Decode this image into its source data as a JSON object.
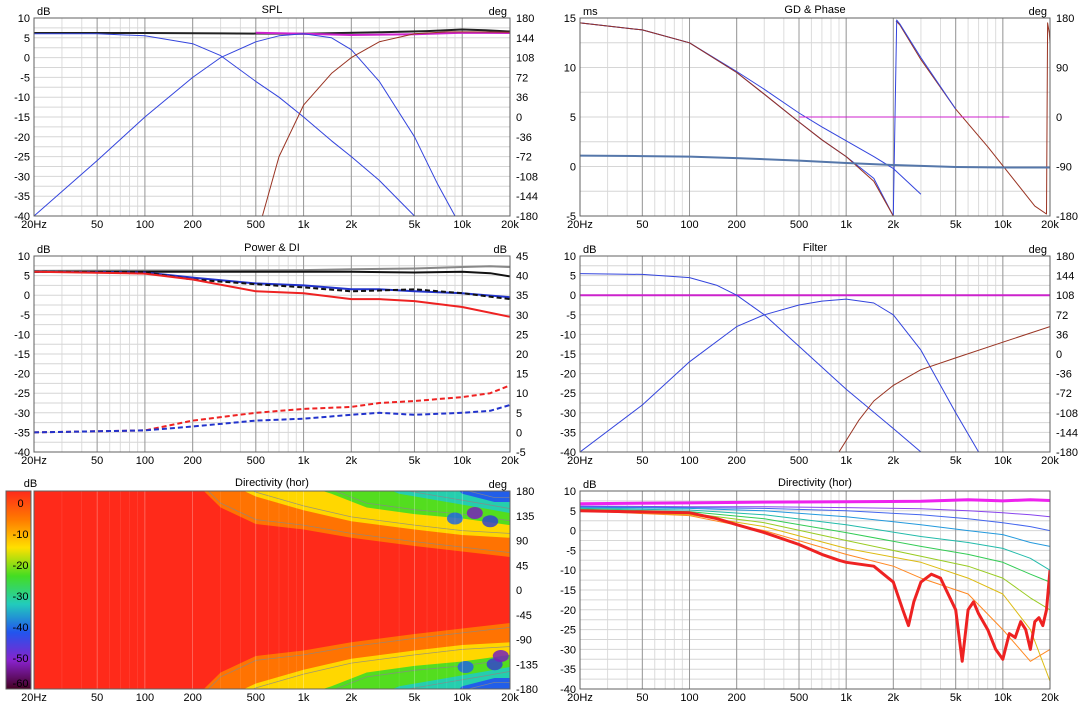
{
  "window": {
    "background": "#ffffff"
  },
  "x_axis": {
    "ticks": [
      20,
      50,
      100,
      200,
      500,
      1000,
      2000,
      5000,
      10000,
      20000
    ],
    "tick_labels": [
      "20Hz",
      "50",
      "100",
      "200",
      "500",
      "1k",
      "2k",
      "5k",
      "10k",
      "20k"
    ],
    "range": [
      20,
      20000
    ],
    "scale": "log"
  },
  "chart_data": [
    {
      "id": "spl",
      "type": "line",
      "title": "SPL",
      "left_unit": "dB",
      "right_unit": "deg",
      "ylim": [
        -40,
        10
      ],
      "y_ticks": [
        10,
        5,
        0,
        -5,
        -10,
        -15,
        -20,
        -25,
        -30,
        -35,
        -40
      ],
      "y2lim": [
        -180,
        180
      ],
      "y2_ticks": [
        180,
        144,
        108,
        72,
        36,
        0,
        -36,
        -72,
        -108,
        -144,
        -180
      ],
      "series": [
        {
          "color": "#222222",
          "width": 2,
          "x": [
            20,
            100,
            300,
            1000,
            3000,
            6000,
            10000,
            14000,
            20000
          ],
          "y": [
            6.2,
            6.2,
            6.1,
            6.0,
            6.4,
            6.7,
            7.1,
            6.9,
            6.6
          ]
        },
        {
          "color": "#cc22cc",
          "width": 2,
          "x": [
            500,
            1000,
            2000,
            5000,
            10000,
            20000
          ],
          "y": [
            6.3,
            6.0,
            5.7,
            5.9,
            6.3,
            6.2
          ]
        },
        {
          "color": "#3344dd",
          "width": 1,
          "x": [
            20,
            50,
            100,
            200,
            300,
            500,
            700,
            1000,
            1500,
            2000,
            3000,
            5000
          ],
          "y": [
            6.0,
            6.0,
            5.5,
            3.5,
            0.5,
            -6,
            -10,
            -15,
            -21,
            -25,
            -31,
            -40
          ]
        },
        {
          "color": "#3344dd",
          "width": 1,
          "x": [
            20,
            50,
            100,
            200,
            300,
            500,
            700,
            1000,
            1500,
            2000,
            3000,
            5000,
            7000,
            9000
          ],
          "y": [
            -40,
            -26,
            -15,
            -5,
            0,
            4,
            5.5,
            6,
            5,
            2,
            -6,
            -20,
            -32,
            -40
          ]
        },
        {
          "color": "#993322",
          "width": 1,
          "x": [
            550,
            700,
            1000,
            1500,
            2000,
            3000,
            5000,
            8000,
            12000,
            20000
          ],
          "y": [
            -40,
            -25,
            -12,
            -4,
            0,
            4,
            6,
            6.5,
            6.5,
            6.4
          ]
        }
      ]
    },
    {
      "id": "gd-phase",
      "type": "line",
      "title": "GD & Phase",
      "left_unit": "ms",
      "right_unit": "deg",
      "ylim": [
        -5,
        15
      ],
      "y_ticks": [
        15,
        10,
        5,
        0,
        -5
      ],
      "y2lim": [
        -180,
        180
      ],
      "y2_ticks": [
        180,
        90,
        0,
        -90,
        -180
      ],
      "series": [
        {
          "color": "#3344dd",
          "width": 1,
          "x": [
            20,
            50,
            100,
            200,
            300,
            500,
            700,
            1000,
            1500,
            2000
          ],
          "y": [
            14.5,
            13.8,
            12.5,
            9.5,
            7.3,
            4.5,
            2.7,
            1.0,
            -1.2,
            -5.0
          ]
        },
        {
          "color": "#3344dd",
          "width": 1,
          "x": [
            20,
            50,
            100,
            200,
            300,
            500,
            700,
            1000,
            1500,
            2000,
            3000
          ],
          "y": [
            14.5,
            13.8,
            12.5,
            9.6,
            7.8,
            5.4,
            4.0,
            2.6,
            1.0,
            -0.2,
            -2.8
          ]
        },
        {
          "color": "#993322",
          "width": 1,
          "x": [
            20,
            50,
            100,
            200,
            300,
            500,
            700,
            1000,
            1500,
            2000
          ],
          "y": [
            14.5,
            13.8,
            12.5,
            9.5,
            7.3,
            4.5,
            2.7,
            1.0,
            -1.5,
            -5.0
          ]
        },
        {
          "color": "#993322",
          "width": 1,
          "x": [
            2080,
            2200,
            3000,
            5000,
            8000,
            12000,
            16000,
            19000,
            19300,
            19800,
            20000
          ],
          "y": [
            14.7,
            14.3,
            10.8,
            5.8,
            2.0,
            -1.5,
            -4.0,
            -4.8,
            14.5,
            13.5,
            12.5
          ]
        },
        {
          "color": "#3344dd",
          "width": 1,
          "x": [
            2000,
            2100,
            2200,
            3000,
            5000
          ],
          "y": [
            -4.9,
            14.8,
            14.4,
            11.0,
            5.8
          ]
        },
        {
          "color": "#cc22cc",
          "width": 1,
          "x": [
            500,
            1000,
            2000,
            5000,
            11000
          ],
          "y": [
            5,
            5,
            5,
            5,
            5
          ]
        },
        {
          "color": "#5577aa",
          "width": 2,
          "x": [
            20,
            50,
            100,
            200,
            500,
            1000,
            2000,
            5000,
            10000,
            20000
          ],
          "y": [
            1.1,
            1.05,
            1.0,
            0.85,
            0.6,
            0.35,
            0.15,
            -0.05,
            -0.1,
            -0.1
          ]
        }
      ]
    },
    {
      "id": "power-di",
      "type": "line",
      "title": "Power & DI",
      "left_unit": "dB",
      "right_unit": "dB",
      "ylim": [
        -40,
        10
      ],
      "y_ticks": [
        10,
        5,
        0,
        -5,
        -10,
        -15,
        -20,
        -25,
        -30,
        -35,
        -40
      ],
      "y2lim": [
        -5,
        45
      ],
      "y2_ticks": [
        45,
        40,
        35,
        30,
        25,
        20,
        15,
        10,
        5,
        0,
        -5
      ],
      "series": [
        {
          "color": "#888888",
          "width": 2,
          "x": [
            20,
            100,
            300,
            1000,
            2000,
            5000,
            10000,
            15000,
            20000
          ],
          "y": [
            6.2,
            6.3,
            6.3,
            6.4,
            6.6,
            6.8,
            7.2,
            7.4,
            7.2
          ]
        },
        {
          "color": "#111111",
          "width": 2,
          "x": [
            20,
            100,
            300,
            1000,
            2000,
            5000,
            10000,
            15000,
            20000
          ],
          "y": [
            6,
            6,
            6,
            6,
            6,
            5.8,
            6.0,
            5.6,
            4.8
          ]
        },
        {
          "color": "#2233cc",
          "width": 2,
          "x": [
            20,
            100,
            200,
            500,
            1000,
            2000,
            3000,
            5000,
            10000,
            20000
          ],
          "y": [
            6,
            5.8,
            4.5,
            3.0,
            2.5,
            1.5,
            1.5,
            1.0,
            0.5,
            -0.5
          ]
        },
        {
          "color": "#111111",
          "width": 2,
          "dash": "5,3",
          "x": [
            20,
            100,
            200,
            500,
            1000,
            2000,
            3000,
            5000,
            10000,
            20000
          ],
          "y": [
            6,
            5.8,
            4.0,
            2.8,
            2.0,
            1.0,
            1.2,
            1.5,
            0.5,
            -1.0
          ]
        },
        {
          "color": "#ee2222",
          "width": 2,
          "x": [
            20,
            100,
            200,
            500,
            1000,
            2000,
            3000,
            5000,
            10000,
            20000
          ],
          "y": [
            6,
            5.5,
            4.0,
            1.0,
            0.5,
            -1.0,
            -1.0,
            -1.5,
            -3.0,
            -5.5
          ]
        },
        {
          "color": "#ee2222",
          "width": 2,
          "dash": "5,3",
          "x": [
            20,
            100,
            200,
            500,
            1000,
            2000,
            3000,
            5000,
            10000,
            15000,
            20000
          ],
          "y": [
            -35,
            -34.5,
            -32.0,
            -30.0,
            -29.0,
            -28.5,
            -27.5,
            -27.0,
            -26.0,
            -25.0,
            -23.0
          ]
        },
        {
          "color": "#2233cc",
          "width": 2,
          "dash": "5,3",
          "x": [
            20,
            100,
            200,
            500,
            1000,
            2000,
            3000,
            5000,
            10000,
            15000,
            20000
          ],
          "y": [
            -35,
            -34.5,
            -33.5,
            -32.0,
            -31.5,
            -30.5,
            -30.0,
            -30.5,
            -30.0,
            -29.5,
            -28.0
          ]
        }
      ]
    },
    {
      "id": "filter",
      "type": "line",
      "title": "Filter",
      "left_unit": "dB",
      "right_unit": "deg",
      "ylim": [
        -40,
        10
      ],
      "y_ticks": [
        10,
        5,
        0,
        -5,
        -10,
        -15,
        -20,
        -25,
        -30,
        -35,
        -40
      ],
      "y2lim": [
        -180,
        180
      ],
      "y2_ticks": [
        180,
        144,
        108,
        72,
        36,
        0,
        -36,
        -72,
        -108,
        -144,
        -180
      ],
      "series": [
        {
          "color": "#cc22cc",
          "width": 2,
          "x": [
            20,
            20000
          ],
          "y": [
            0,
            0
          ]
        },
        {
          "color": "#3344dd",
          "width": 1,
          "x": [
            20,
            50,
            100,
            150,
            200,
            300,
            500,
            1000,
            2000,
            3000
          ],
          "y": [
            5.5,
            5.3,
            4.5,
            2.5,
            0,
            -5,
            -13,
            -24,
            -34,
            -40
          ]
        },
        {
          "color": "#3344dd",
          "width": 1,
          "x": [
            20,
            50,
            100,
            200,
            300,
            500,
            700,
            1000,
            1500,
            2000,
            3000,
            5000,
            7000
          ],
          "y": [
            -40,
            -28,
            -17,
            -8,
            -5,
            -2.5,
            -1.5,
            -1,
            -2,
            -5,
            -14,
            -30,
            -40
          ]
        },
        {
          "color": "#993322",
          "width": 1,
          "x": [
            900,
            1200,
            1500,
            2000,
            3000,
            5000,
            10000,
            20000
          ],
          "y": [
            -40,
            -32,
            -27,
            -23,
            -19,
            -16,
            -12,
            -8
          ]
        }
      ]
    },
    {
      "id": "directivity-map",
      "type": "heatmap",
      "title": "Directivity (hor)",
      "left_unit": "",
      "right_unit": "deg",
      "y2_ticks": [
        180,
        135,
        90,
        45,
        0,
        -45,
        -90,
        -135,
        -180
      ],
      "colorbar_label": "dB",
      "colorbar_ticks": [
        0,
        -10,
        -20,
        -30,
        -40,
        -50,
        -60
      ],
      "color_stops": [
        "#ff2a1a",
        "#ff7a00",
        "#ffe000",
        "#44dd22",
        "#22ccbb",
        "#2255ee",
        "#8822cc",
        "#440022"
      ]
    },
    {
      "id": "directivity-lines",
      "type": "line",
      "title": "Directivity (hor)",
      "left_unit": "dB",
      "right_unit": "",
      "ylim": [
        -40,
        10
      ],
      "y_ticks": [
        10,
        5,
        0,
        -5,
        -10,
        -15,
        -20,
        -25,
        -30,
        -35,
        -40
      ],
      "series": [
        {
          "color": "#ee22ee",
          "width": 3,
          "x": [
            20,
            100,
            300,
            1000,
            3000,
            6000,
            10000,
            15000,
            20000
          ],
          "y": [
            6.8,
            7.0,
            7.2,
            7.3,
            7.4,
            7.8,
            7.5,
            7.8,
            7.6
          ]
        },
        {
          "color": "#8844ee",
          "width": 1,
          "x": [
            20,
            100,
            300,
            1000,
            3000,
            6000,
            10000,
            15000,
            20000
          ],
          "y": [
            6.2,
            6.0,
            6.0,
            5.8,
            5.5,
            5.0,
            4.5,
            4.0,
            3.5
          ]
        },
        {
          "color": "#4466ee",
          "width": 1,
          "x": [
            20,
            100,
            300,
            1000,
            3000,
            6000,
            10000,
            15000,
            20000
          ],
          "y": [
            6.0,
            5.8,
            5.6,
            5.0,
            4.0,
            3.0,
            2.0,
            1.0,
            0.0
          ]
        },
        {
          "color": "#2299dd",
          "width": 1,
          "x": [
            20,
            100,
            300,
            1000,
            3000,
            6000,
            10000,
            15000,
            20000
          ],
          "y": [
            5.8,
            5.6,
            5.0,
            3.5,
            1.5,
            0.0,
            -1.0,
            -3.0,
            -4.0
          ]
        },
        {
          "color": "#22bbaa",
          "width": 1,
          "x": [
            20,
            100,
            300,
            1000,
            3000,
            6000,
            10000,
            15000,
            20000
          ],
          "y": [
            5.6,
            5.2,
            4.0,
            1.5,
            -1.5,
            -3.0,
            -4.5,
            -7.0,
            -10.0
          ]
        },
        {
          "color": "#33cc55",
          "width": 1,
          "x": [
            20,
            100,
            300,
            1000,
            3000,
            6000,
            10000,
            15000,
            20000
          ],
          "y": [
            5.4,
            4.8,
            3.0,
            -0.5,
            -4.0,
            -6.0,
            -8.0,
            -11.0,
            -13.0
          ]
        },
        {
          "color": "#99cc22",
          "width": 1,
          "x": [
            20,
            100,
            300,
            1000,
            3000,
            6000,
            10000,
            15000,
            20000
          ],
          "y": [
            5.2,
            4.4,
            2.0,
            -2.5,
            -6.5,
            -9.0,
            -12.0,
            -17.0,
            -20.0
          ]
        },
        {
          "color": "#ddbb11",
          "width": 1,
          "x": [
            20,
            100,
            300,
            1000,
            3000,
            6000,
            10000,
            15000,
            20000
          ],
          "y": [
            5.0,
            4.0,
            1.0,
            -4.5,
            -8.0,
            -12.0,
            -16.0,
            -25.0,
            -38.0
          ]
        },
        {
          "color": "#ff8822",
          "width": 1,
          "x": [
            20,
            100,
            300,
            1000,
            2000,
            3000,
            6000,
            10000,
            15000,
            20000
          ],
          "y": [
            5.0,
            3.8,
            0.0,
            -6.0,
            -9.0,
            -12.0,
            -16.0,
            -25.0,
            -33.0,
            -30.0
          ]
        },
        {
          "color": "#ee2222",
          "width": 3,
          "x": [
            20,
            100,
            150,
            200,
            300,
            500,
            700,
            900,
            1000,
            1500,
            2000,
            2300,
            2500,
            2700,
            3000,
            3500,
            4000,
            5000,
            5500,
            6000,
            6500,
            7000,
            8000,
            9000,
            10000,
            11000,
            12000,
            13000,
            14000,
            15000,
            16000,
            17000,
            18000,
            19000,
            20000
          ],
          "y": [
            5.0,
            4.5,
            3.0,
            1.5,
            -0.5,
            -3.5,
            -6.0,
            -7.5,
            -8.0,
            -9.0,
            -13.0,
            -20.0,
            -24.0,
            -18.0,
            -13.0,
            -11.0,
            -12.0,
            -20.0,
            -33.0,
            -20.0,
            -18.0,
            -21.0,
            -25.0,
            -30.0,
            -32.5,
            -26.0,
            -27.0,
            -23.0,
            -25.0,
            -30.0,
            -23.0,
            -22.0,
            -24.0,
            -20.0,
            -10.0
          ]
        }
      ]
    }
  ]
}
